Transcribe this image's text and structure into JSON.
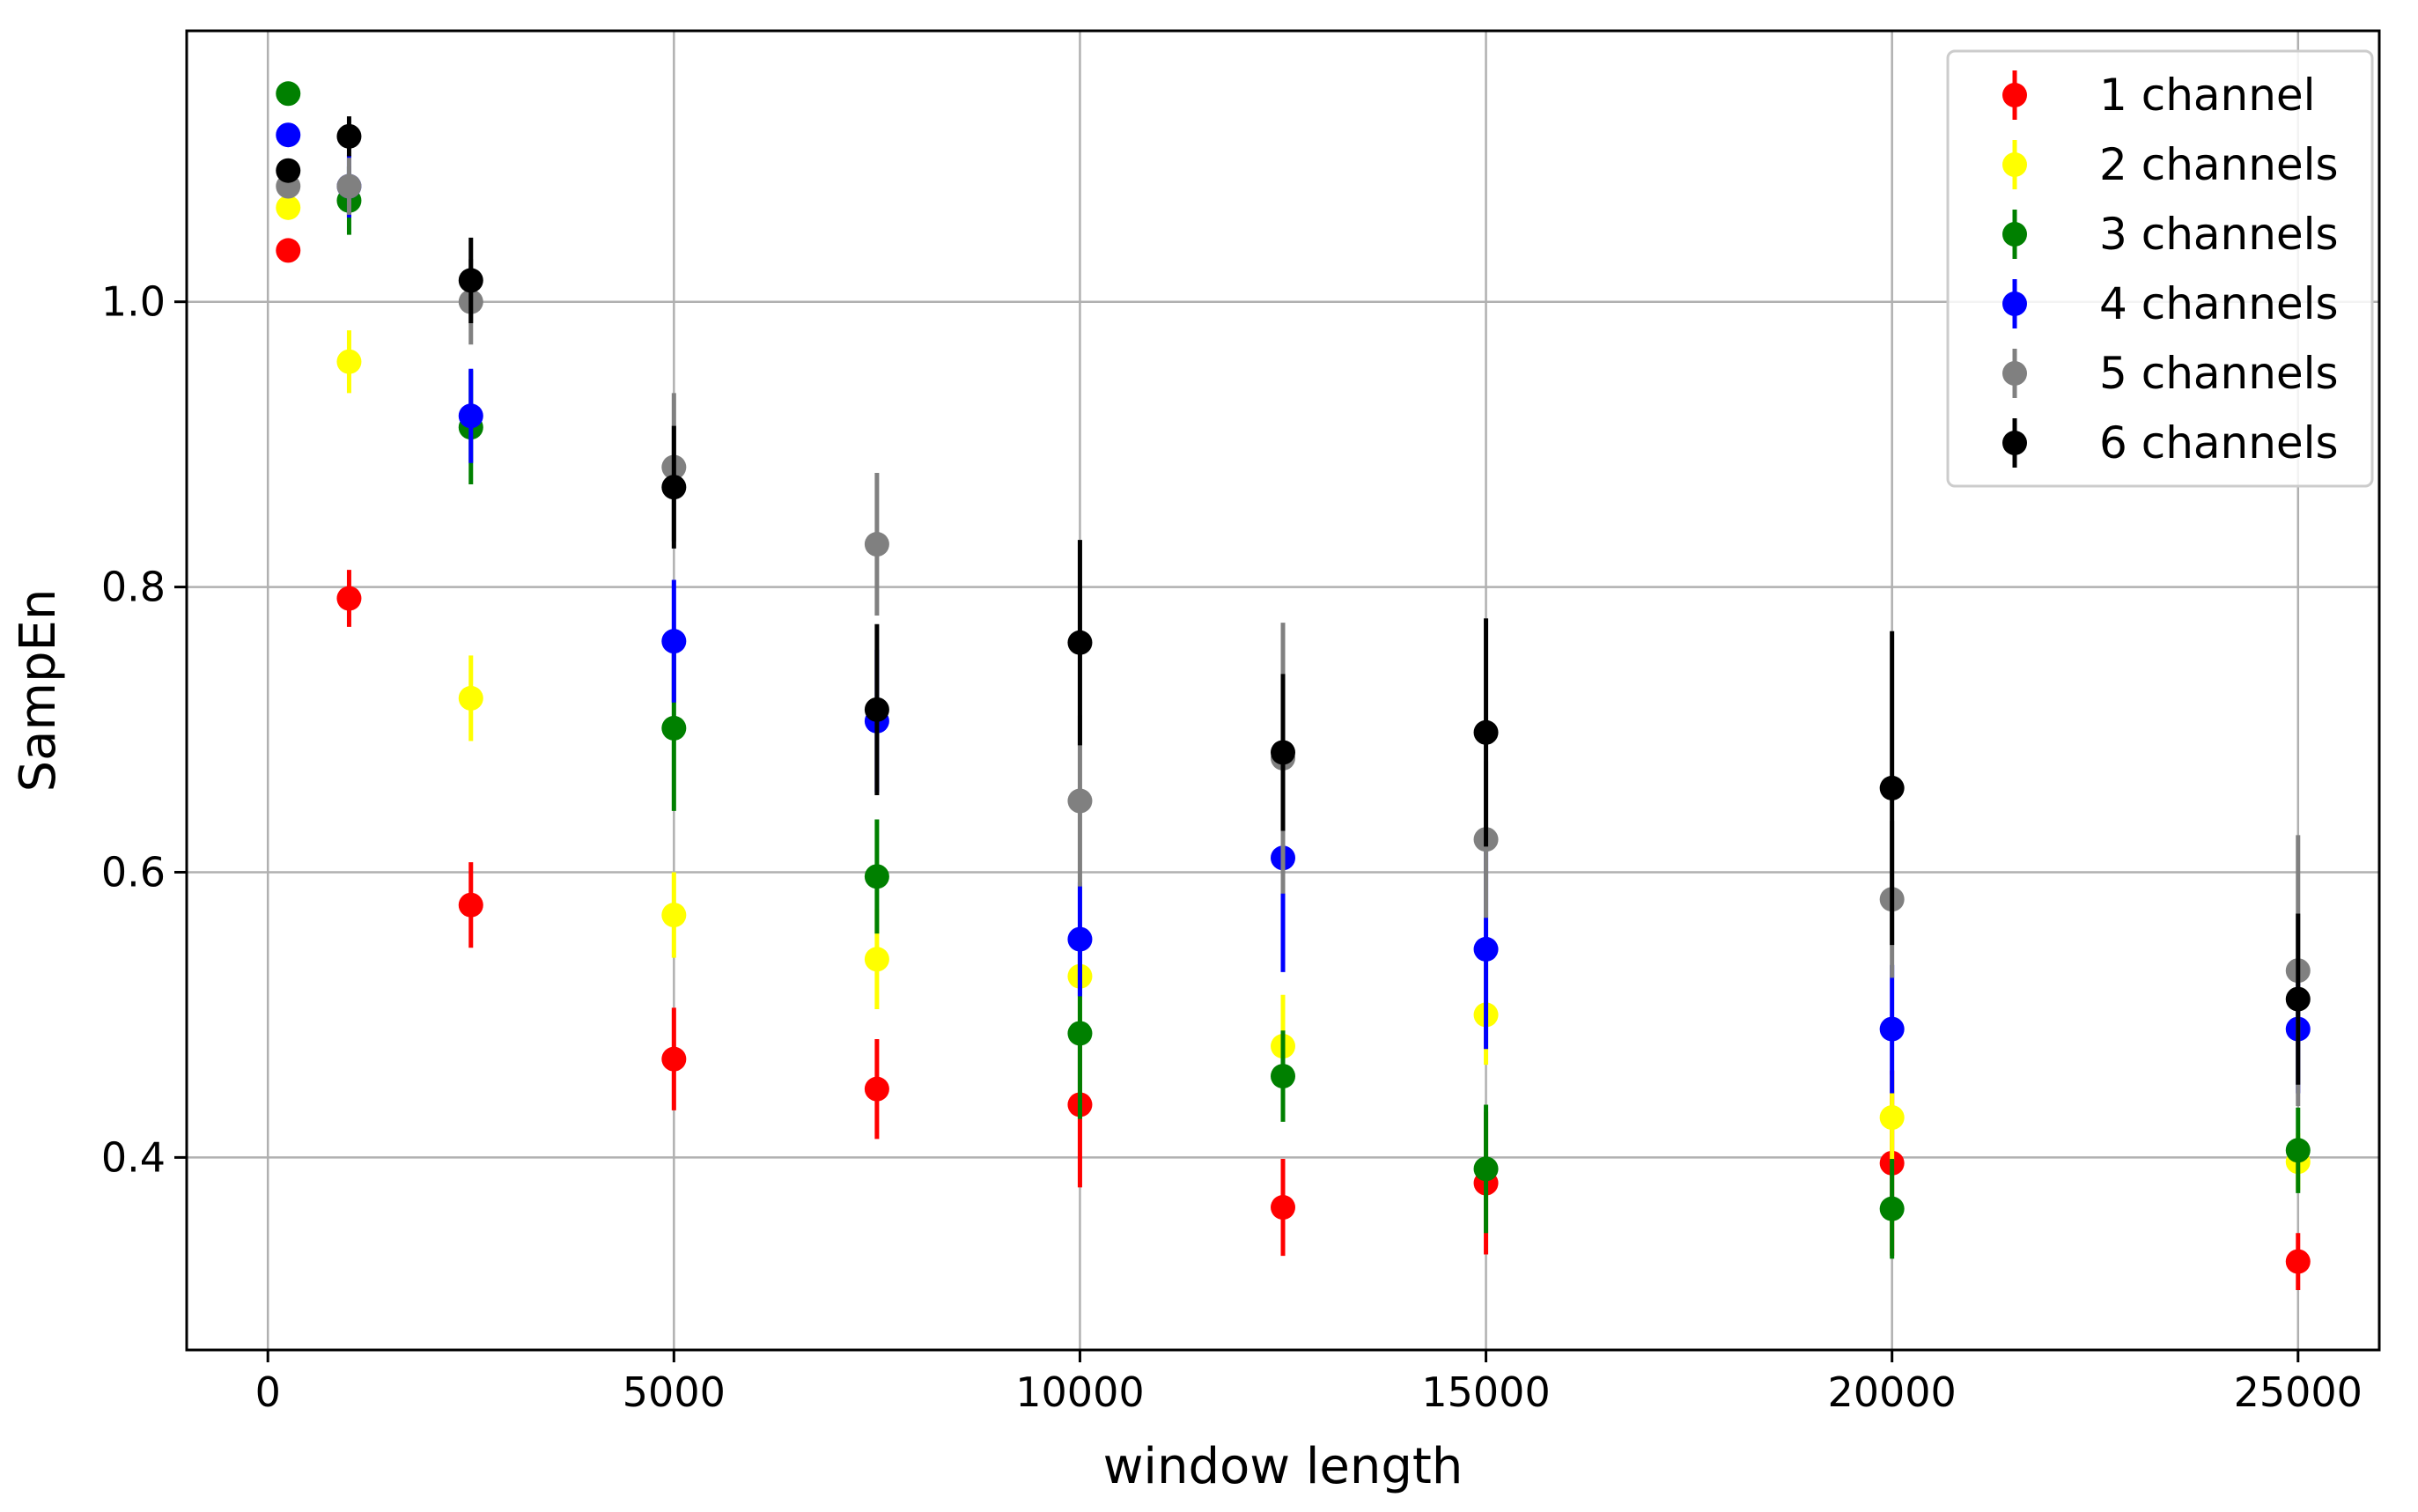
{
  "chart_data": {
    "type": "scatter",
    "title": "",
    "xlabel": "window length",
    "ylabel": "SampEn",
    "xlim": [
      -1000,
      26000
    ],
    "ylim": [
      0.265,
      1.19
    ],
    "xticks": [
      0,
      5000,
      10000,
      15000,
      20000,
      25000
    ],
    "xtick_labels": [
      "0",
      "5000",
      "10000",
      "15000",
      "20000",
      "25000"
    ],
    "yticks": [
      0.4,
      0.6,
      0.8,
      1.0
    ],
    "ytick_labels": [
      "0.4",
      "0.6",
      "0.8",
      "1.0"
    ],
    "grid": true,
    "legend_position": "top-right",
    "x": [
      250,
      1000,
      2500,
      5000,
      7500,
      10000,
      12500,
      15000,
      20000,
      25000
    ],
    "series": [
      {
        "name": "1 channel",
        "color": "#ff0000",
        "values": [
          1.036,
          0.792,
          0.577,
          0.469,
          0.448,
          0.437,
          0.365,
          0.382,
          0.396,
          0.327
        ],
        "errors": [
          0.0,
          0.02,
          0.03,
          0.036,
          0.035,
          0.058,
          0.034,
          0.05,
          0.065,
          0.02
        ]
      },
      {
        "name": "2 channels",
        "color": "#ffff00",
        "values": [
          1.066,
          0.958,
          0.722,
          0.57,
          0.539,
          0.527,
          0.478,
          0.5,
          0.428,
          0.397
        ],
        "errors": [
          0.0,
          0.022,
          0.03,
          0.03,
          0.035,
          0.035,
          0.036,
          0.035,
          0.03,
          0.02
        ]
      },
      {
        "name": "3 channels",
        "color": "#008000",
        "values": [
          1.146,
          1.071,
          0.912,
          0.701,
          0.597,
          0.487,
          0.457,
          0.392,
          0.364,
          0.405
        ],
        "errors": [
          0.0,
          0.024,
          0.04,
          0.058,
          0.04,
          0.06,
          0.032,
          0.045,
          0.035,
          0.03
        ]
      },
      {
        "name": "4 channels",
        "color": "#0000ff",
        "values": [
          1.117,
          1.081,
          0.92,
          0.762,
          0.706,
          0.553,
          0.61,
          0.546,
          0.49,
          0.49
        ],
        "errors": [
          0.0,
          0.022,
          0.033,
          0.043,
          0.05,
          0.04,
          0.08,
          0.07,
          0.045,
          0.045
        ]
      },
      {
        "name": "5 channels",
        "color": "#808080",
        "values": [
          1.081,
          1.081,
          1.0,
          0.884,
          0.83,
          0.65,
          0.68,
          0.623,
          0.581,
          0.531
        ],
        "errors": [
          0.0,
          0.02,
          0.03,
          0.052,
          0.05,
          0.06,
          0.095,
          0.055,
          0.055,
          0.095
        ]
      },
      {
        "name": "6 channels",
        "color": "#000000",
        "values": [
          1.092,
          1.116,
          1.015,
          0.87,
          0.714,
          0.761,
          0.684,
          0.698,
          0.659,
          0.511
        ],
        "errors": [
          0.0,
          0.014,
          0.03,
          0.043,
          0.06,
          0.072,
          0.055,
          0.08,
          0.11,
          0.06
        ]
      }
    ]
  }
}
